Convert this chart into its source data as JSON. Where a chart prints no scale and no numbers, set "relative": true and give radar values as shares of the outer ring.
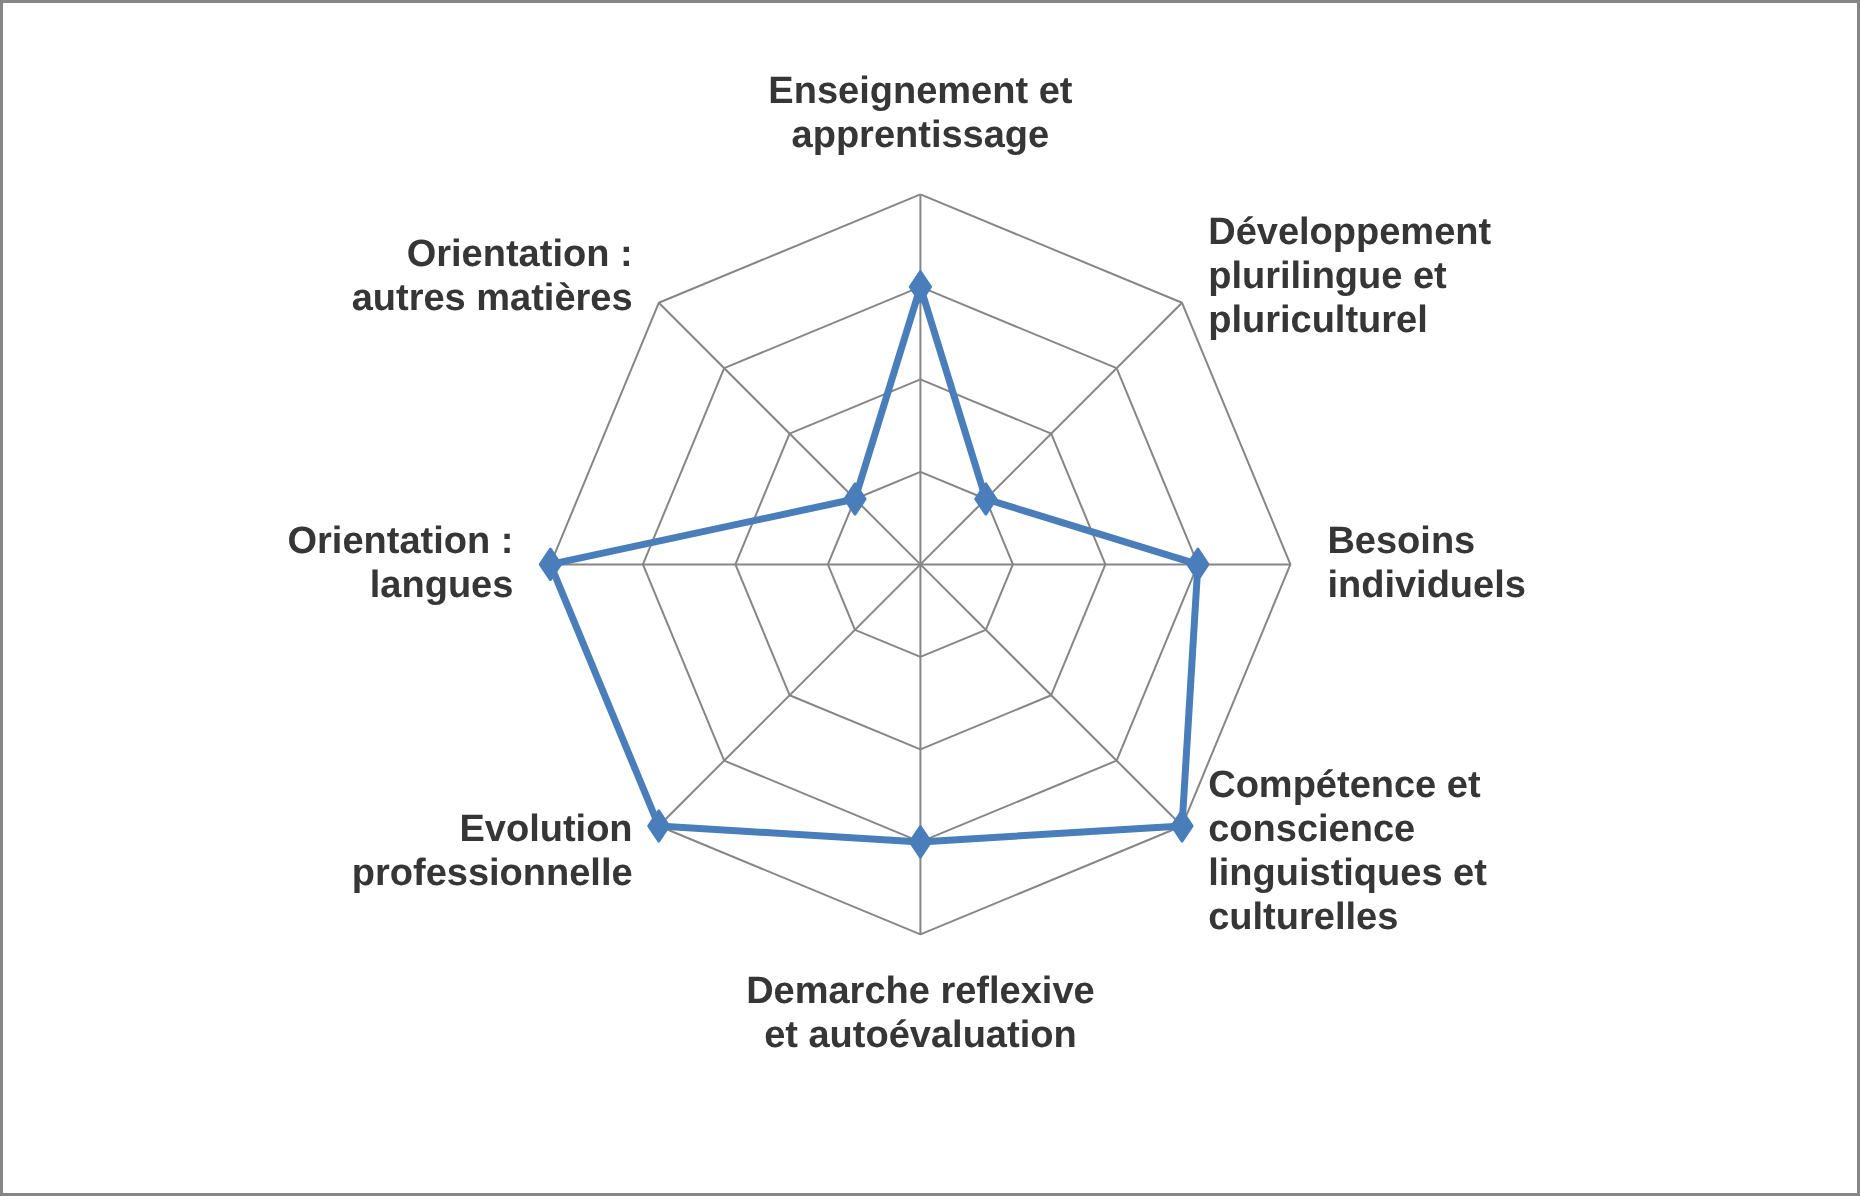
{
  "chart_data": {
    "type": "radar",
    "relative": true,
    "categories": [
      "Enseignement et apprentissage",
      "Développement plurilingue et pluriculturel",
      "Besoins individuels",
      "Compétence et conscience linguistiques et culturelles",
      "Demarche reflexive et autoévaluation",
      "Evolution professionnelle",
      "Orientation : langues",
      "Orientation : autres matières"
    ],
    "series": [
      {
        "color": "#4a7ebb",
        "values": [
          0.75,
          0.25,
          0.75,
          1,
          0.75,
          1,
          1,
          0.25
        ]
      }
    ],
    "marker": "diamond",
    "line_style": "solid",
    "grid": true
  }
}
